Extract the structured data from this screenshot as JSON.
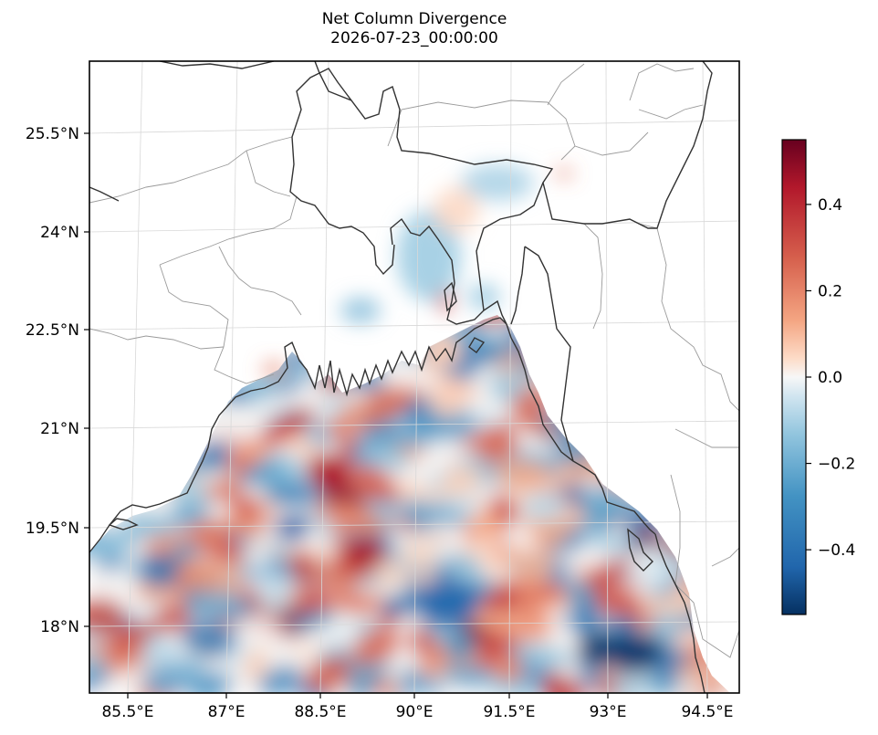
{
  "figure": {
    "title": "Net Column Divergence",
    "subtitle": "2026-07-23_00:00:00"
  },
  "map": {
    "lon_labels": [
      "85.5°E",
      "87°E",
      "88.5°E",
      "90°E",
      "91.5°E",
      "93°E",
      "94.5°E"
    ],
    "lat_labels": [
      "25.5°N",
      "24°N",
      "22.5°N",
      "21°N",
      "19.5°N",
      "18°N"
    ],
    "extent": {
      "lon_min": 84.8,
      "lon_max": 94.8,
      "lat_min": 17.0,
      "lat_max": 26.5
    }
  },
  "colorbar": {
    "tick_labels": [
      "0.4",
      "0.2",
      "0.0",
      "−0.2",
      "−0.4"
    ],
    "range": [
      -0.55,
      0.55
    ],
    "colormap": "RdBu_r",
    "colors": {
      "max": "#67001f",
      "mid_high": "#d6604d",
      "zero": "#f7f7f7",
      "mid_low": "#4393c3",
      "min": "#053061"
    }
  }
}
